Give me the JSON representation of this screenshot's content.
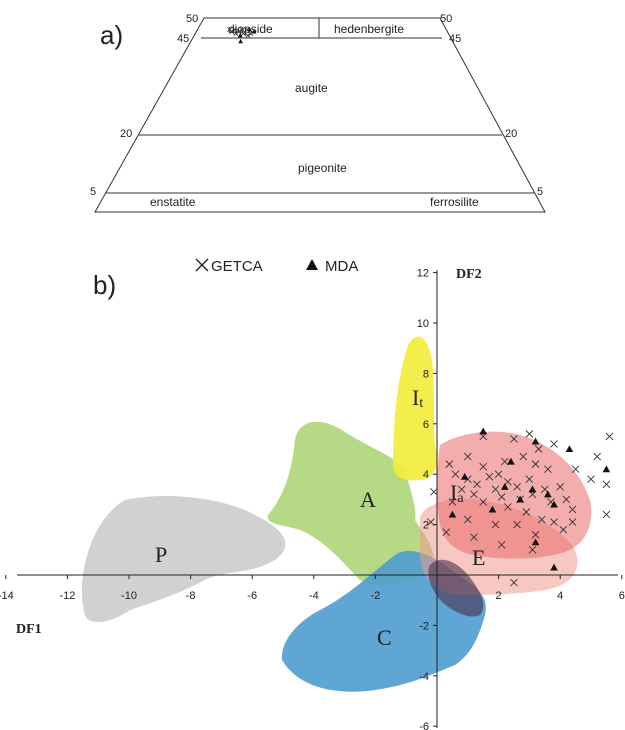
{
  "panel_a": {
    "label": "a)",
    "scale_labels": {
      "top_left": "50",
      "top_right": "50",
      "left_45": "45",
      "right_45": "45",
      "left_20": "20",
      "right_20": "20",
      "left_5": "5",
      "right_5": "5"
    },
    "fields": {
      "diopside": "diopside",
      "hedenbergite": "hedenbergite",
      "augite": "augite",
      "pigeonite": "pigeonite",
      "enstatite": "enstatite",
      "ferrosilite": "ferrosilite"
    }
  },
  "panel_b": {
    "label": "b)",
    "legend": {
      "getca": "GETCA",
      "mda": "MDA"
    },
    "fields": {
      "It_main": "I",
      "It_sub": "t",
      "Ia_main": "I",
      "Ia_sub": "a",
      "A": "A",
      "P": "P",
      "E": "E",
      "C": "C"
    },
    "colors": {
      "It": "#f3ec3a",
      "A": "#a8d270",
      "P": "#c9c9c9",
      "Ia": "#ea6a6a",
      "E": "#ef9a8e",
      "C": "#4f9ccf",
      "dark": "#4a2f4a"
    }
  },
  "chart_data": [
    {
      "type": "scatter",
      "subtype": "ternary-trapezoid",
      "title": "",
      "fields": [
        "diopside",
        "hedenbergite",
        "augite",
        "pigeonite",
        "enstatite",
        "ferrosilite"
      ],
      "boundaries_wo": [
        50,
        45,
        20,
        5
      ],
      "series": [
        {
          "name": "GETCA",
          "marker": "x",
          "points": [
            [
              13,
              47
            ],
            [
              14,
              46.5
            ],
            [
              15,
              47
            ],
            [
              16,
              46
            ],
            [
              17,
              46.5
            ],
            [
              18,
              47
            ],
            [
              19,
              46
            ],
            [
              20,
              47
            ],
            [
              21,
              45.5
            ],
            [
              22,
              46
            ]
          ]
        },
        {
          "name": "MDA",
          "marker": "triangle",
          "points": [
            [
              18,
              45.5
            ],
            [
              21,
              47
            ],
            [
              23,
              46.5
            ],
            [
              19,
              44
            ]
          ]
        }
      ]
    },
    {
      "type": "scatter",
      "title": "",
      "xlabel": "DF1",
      "ylabel": "DF2",
      "xlim": [
        -14,
        6
      ],
      "ylim": [
        -6,
        12
      ],
      "xticks": [
        -14,
        -12,
        -10,
        -8,
        -6,
        -4,
        -2,
        2,
        4,
        6
      ],
      "yticks": [
        -6,
        -4,
        -2,
        2,
        4,
        6,
        8,
        10,
        12
      ],
      "legend": "top-left",
      "series": [
        {
          "name": "GETCA",
          "marker": "x",
          "points": [
            [
              1.5,
              5.5
            ],
            [
              2.5,
              5.4
            ],
            [
              3.0,
              5.6
            ],
            [
              3.3,
              5.0
            ],
            [
              3.8,
              5.2
            ],
            [
              5.6,
              5.5
            ],
            [
              5.2,
              4.7
            ],
            [
              1.0,
              4.7
            ],
            [
              1.5,
              4.3
            ],
            [
              2.0,
              4.0
            ],
            [
              2.2,
              4.5
            ],
            [
              2.8,
              4.7
            ],
            [
              3.2,
              4.4
            ],
            [
              3.6,
              4.2
            ],
            [
              4.5,
              4.2
            ],
            [
              5.0,
              3.8
            ],
            [
              0.4,
              4.4
            ],
            [
              0.6,
              4.0
            ],
            [
              1.0,
              3.8
            ],
            [
              1.3,
              3.6
            ],
            [
              1.7,
              3.9
            ],
            [
              2.3,
              3.7
            ],
            [
              2.6,
              3.5
            ],
            [
              3.0,
              3.8
            ],
            [
              3.5,
              3.4
            ],
            [
              4.0,
              3.5
            ],
            [
              4.2,
              3.0
            ],
            [
              5.5,
              3.6
            ],
            [
              0.8,
              3.4
            ],
            [
              1.2,
              3.2
            ],
            [
              1.9,
              3.4
            ],
            [
              2.1,
              3.1
            ],
            [
              2.7,
              3.0
            ],
            [
              3.1,
              3.2
            ],
            [
              3.7,
              2.9
            ],
            [
              4.4,
              2.6
            ],
            [
              5.5,
              2.4
            ],
            [
              1.5,
              2.9
            ],
            [
              2.3,
              2.7
            ],
            [
              2.9,
              2.5
            ],
            [
              3.4,
              2.2
            ],
            [
              3.8,
              2.1
            ],
            [
              4.4,
              2.1
            ],
            [
              0.3,
              1.7
            ],
            [
              1.0,
              2.2
            ],
            [
              1.9,
              2.0
            ],
            [
              2.6,
              2.0
            ],
            [
              3.2,
              1.6
            ],
            [
              4.1,
              1.8
            ],
            [
              1.2,
              1.5
            ],
            [
              2.1,
              1.2
            ],
            [
              3.1,
              1.0
            ],
            [
              2.5,
              -0.3
            ],
            [
              -0.2,
              2.1
            ],
            [
              -0.1,
              3.3
            ],
            [
              0.5,
              2.9
            ]
          ]
        },
        {
          "name": "MDA",
          "marker": "triangle",
          "points": [
            [
              1.5,
              5.7
            ],
            [
              3.2,
              5.3
            ],
            [
              4.3,
              5.0
            ],
            [
              2.4,
              4.5
            ],
            [
              0.9,
              3.9
            ],
            [
              5.5,
              4.2
            ],
            [
              2.2,
              3.5
            ],
            [
              3.1,
              3.4
            ],
            [
              3.6,
              3.2
            ],
            [
              2.7,
              3.0
            ],
            [
              3.8,
              2.8
            ],
            [
              1.8,
              2.6
            ],
            [
              3.2,
              1.3
            ],
            [
              3.8,
              0.3
            ],
            [
              0.5,
              2.4
            ]
          ]
        }
      ]
    }
  ]
}
